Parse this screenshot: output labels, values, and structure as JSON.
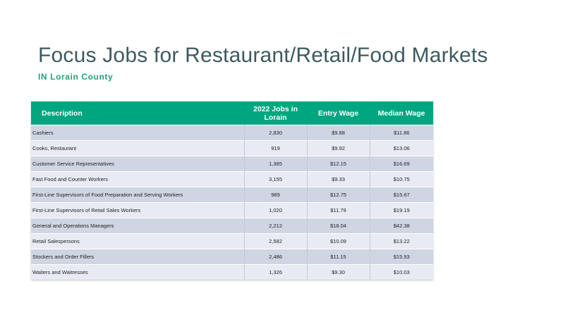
{
  "slide": {
    "title": "Focus Jobs for Restaurant/Retail/Food Markets",
    "subtitle": "IN Lorain County"
  },
  "colors": {
    "title": "#3d5a5f",
    "subtitle": "#1fa37a",
    "header_bg": "#00a680",
    "row_dark": "#cfd5e3",
    "row_light": "#e8ebf3"
  },
  "table": {
    "headers": {
      "description": "Description",
      "jobs_line1": "2022 Jobs in",
      "jobs_line2": "Lorain",
      "entry_wage": "Entry Wage",
      "median_wage": "Median Wage"
    },
    "rows": [
      {
        "description": "Cashiers",
        "jobs": "2,830",
        "entry": "$9.88",
        "median": "$11.86"
      },
      {
        "description": "Cooks, Restaurant",
        "jobs": "919",
        "entry": "$9.92",
        "median": "$13.06"
      },
      {
        "description": "Customer Service Representatives",
        "jobs": "1,385",
        "entry": "$12.15",
        "median": "$16.69"
      },
      {
        "description": "Fast Food and Counter Workers",
        "jobs": "3,155",
        "entry": "$9.33",
        "median": "$10.75"
      },
      {
        "description": "First-Line Supervisors of Food Preparation and Serving Workers",
        "jobs": "989",
        "entry": "$12.75",
        "median": "$15.67"
      },
      {
        "description": "First-Line Supervisors of Retail Sales Workers",
        "jobs": "1,020",
        "entry": "$11.79",
        "median": "$19.19"
      },
      {
        "description": "General and Operations Managers",
        "jobs": "2,212",
        "entry": "$18.04",
        "median": "$42.38"
      },
      {
        "description": "Retail Salespersons",
        "jobs": "2,582",
        "entry": "$10.09",
        "median": "$13.22"
      },
      {
        "description": "Stockers and Order Fillers",
        "jobs": "2,486",
        "entry": "$11.15",
        "median": "$15.93"
      },
      {
        "description": "Waiters and Waitresses",
        "jobs": "1,326",
        "entry": "$9.30",
        "median": "$10.03"
      }
    ]
  }
}
